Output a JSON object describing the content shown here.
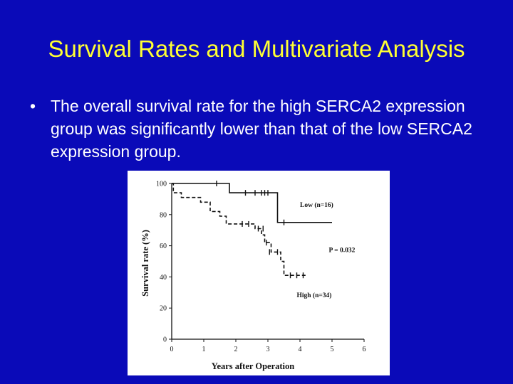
{
  "slide": {
    "title": "Survival Rates and Multivariate Analysis",
    "bullet_symbol": "•",
    "bullet_text": "The overall survival rate for the high SERCA2 expression group was significantly lower than that of the low SERCA2 expression group."
  },
  "colors": {
    "background": "#0a0ab8",
    "title": "#ffff33",
    "text": "#ffffff",
    "chart_bg": "#ffffff"
  },
  "chart_data": {
    "type": "line",
    "subtype": "kaplan-meier-step",
    "xlabel": "Years after Operation",
    "ylabel": "Survival rate (%)",
    "xlim": [
      0,
      6
    ],
    "ylim": [
      0,
      100
    ],
    "xticks": [
      "0",
      "1",
      "2",
      "3",
      "4",
      "5",
      "6"
    ],
    "yticks": [
      "0",
      "20",
      "40",
      "60",
      "80",
      "100"
    ],
    "grid": false,
    "series": [
      {
        "name": "Low (n=16)",
        "style": "solid",
        "steps": [
          [
            0,
            100
          ],
          [
            1.8,
            100
          ],
          [
            1.8,
            94
          ],
          [
            3.3,
            94
          ],
          [
            3.3,
            75
          ],
          [
            5.0,
            75
          ]
        ],
        "censors": [
          [
            1.4,
            100
          ],
          [
            2.3,
            94
          ],
          [
            2.6,
            94
          ],
          [
            2.8,
            94
          ],
          [
            2.9,
            94
          ],
          [
            3.0,
            94
          ],
          [
            3.5,
            75
          ]
        ]
      },
      {
        "name": "High (n=34)",
        "style": "dashed",
        "steps": [
          [
            0,
            100
          ],
          [
            0.05,
            100
          ],
          [
            0.05,
            94
          ],
          [
            0.3,
            94
          ],
          [
            0.3,
            91
          ],
          [
            0.9,
            91
          ],
          [
            0.9,
            88
          ],
          [
            1.2,
            88
          ],
          [
            1.2,
            82
          ],
          [
            1.5,
            82
          ],
          [
            1.5,
            79
          ],
          [
            1.7,
            79
          ],
          [
            1.7,
            74
          ],
          [
            2.6,
            74
          ],
          [
            2.6,
            71
          ],
          [
            2.8,
            71
          ],
          [
            2.8,
            67
          ],
          [
            2.9,
            67
          ],
          [
            2.9,
            62
          ],
          [
            3.1,
            62
          ],
          [
            3.1,
            56
          ],
          [
            3.4,
            56
          ],
          [
            3.4,
            50
          ],
          [
            3.5,
            50
          ],
          [
            3.5,
            41
          ],
          [
            4.2,
            41
          ]
        ],
        "censors": [
          [
            2.2,
            74
          ],
          [
            2.4,
            74
          ],
          [
            2.7,
            71
          ],
          [
            2.85,
            71
          ],
          [
            2.95,
            62
          ],
          [
            3.05,
            56
          ],
          [
            3.3,
            56
          ],
          [
            3.7,
            41
          ],
          [
            3.9,
            41
          ],
          [
            4.1,
            41
          ]
        ]
      }
    ],
    "annotations": [
      {
        "text": "Low (n=16)",
        "x": 4.0,
        "y": 85
      },
      {
        "text": "P = 0.032",
        "x": 4.9,
        "y": 56
      },
      {
        "text": "High (n=34)",
        "x": 3.9,
        "y": 27
      }
    ]
  }
}
